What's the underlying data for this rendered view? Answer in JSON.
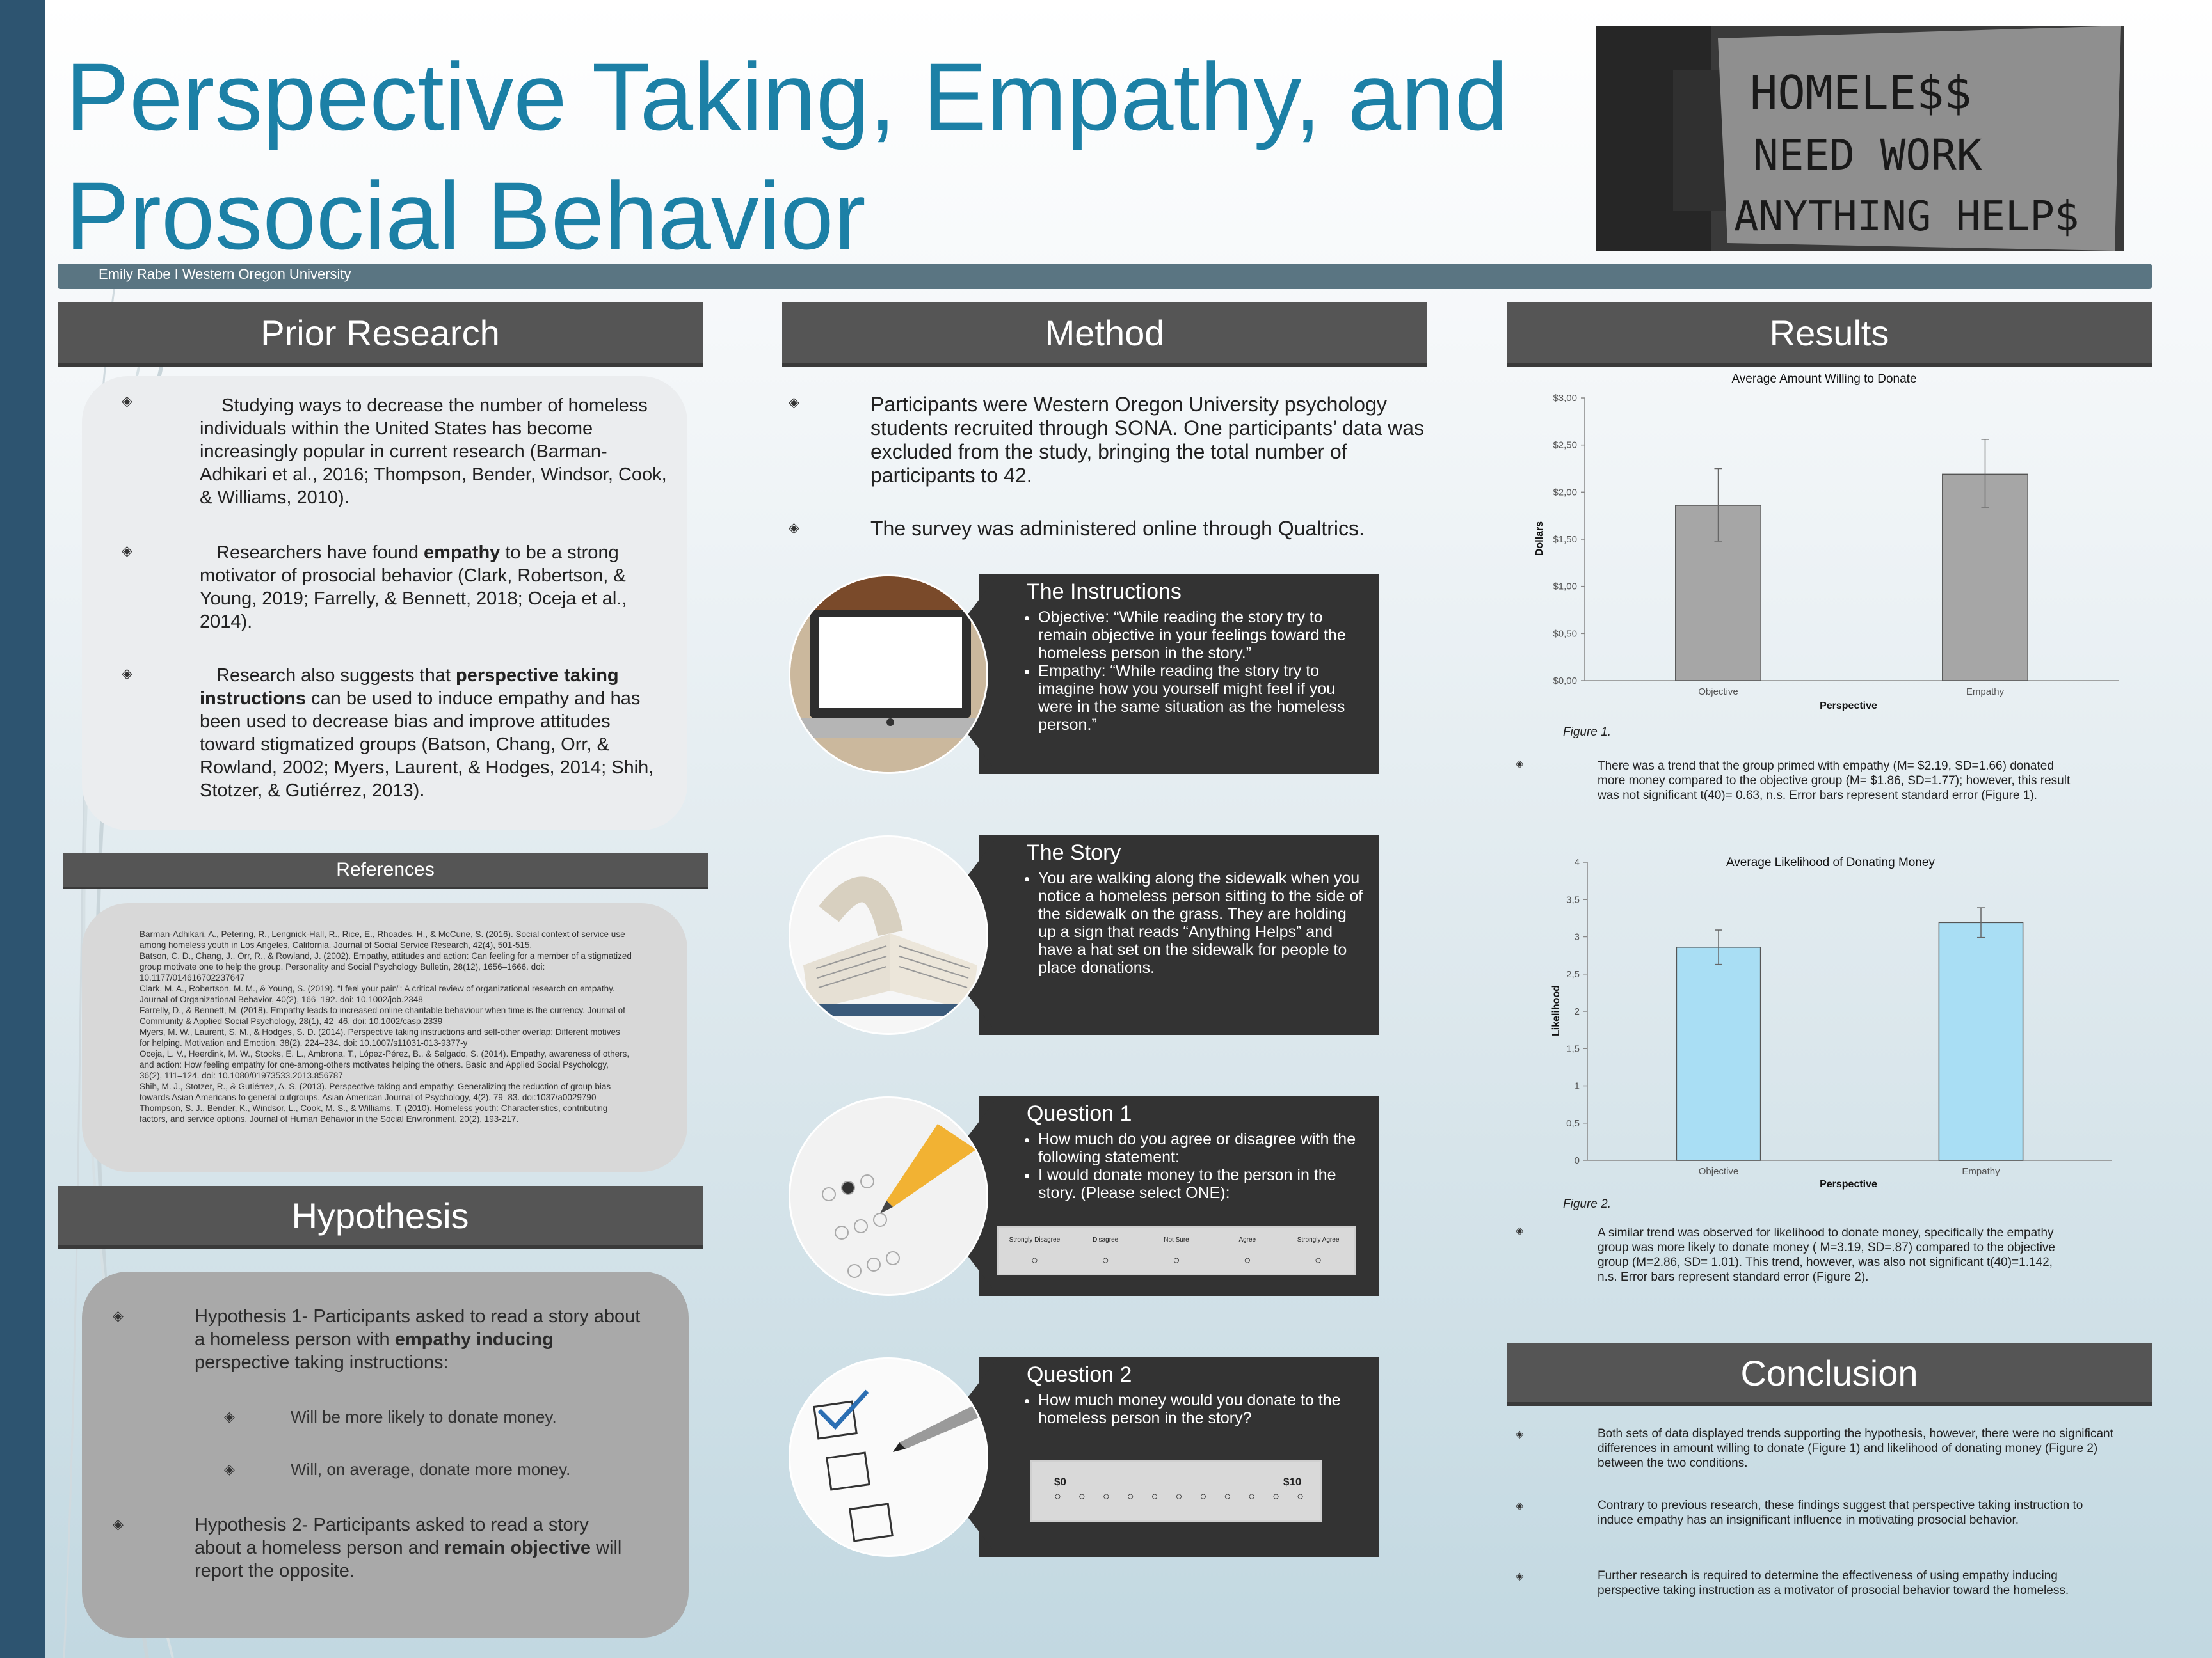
{
  "title_lines": [
    "Perspective Taking, Empathy, and",
    "Prosocial Behavior"
  ],
  "photo_sign": [
    "HOMELE$$",
    "NEED WORK",
    "ANYTHING HELP$"
  ],
  "author": "Emily Rabe I Western Oregon University",
  "prior": {
    "heading": "Prior Research",
    "p1": "Studying ways to decrease the number of homeless individuals within the United States has become increasingly popular in current research (Barman-Adhikari et al., 2016; Thompson, Bender, Windsor, Cook, & Williams, 2010).",
    "p2a": "Researchers have found ",
    "p2b": "empathy",
    "p2c": " to be a strong motivator of prosocial behavior (Clark, Robertson, & Young, 2019; Farrelly, & Bennett, 2018; Oceja et al., 2014).",
    "p3a": "Research also suggests that ",
    "p3b": "perspective taking instructions",
    "p3c": " can be used to induce empathy and has been used to decrease bias and improve attitudes toward stigmatized groups (Batson, Chang, Orr, & Rowland, 2002; Myers, Laurent, & Hodges, 2014; Shih, Stotzer, & Gutiérrez, 2013)."
  },
  "references": {
    "heading": "References",
    "items": [
      "Barman-Adhikari, A., Petering, R., Lengnick-Hall, R., Rice, E., Rhoades, H., & McCune, S. (2016). Social context of service use among homeless youth in Los Angeles, California. Journal of Social Service Research, 42(4), 501-515.",
      "Batson, C. D., Chang, J., Orr, R., & Rowland, J. (2002). Empathy, attitudes and action: Can feeling for a member of a stigmatized group motivate one to help the group. Personality and Social Psychology Bulletin, 28(12), 1656–1666. doi: 10.1177/014616702237647",
      "Clark, M. A., Robertson, M. M., & Young, S. (2019). “I feel your pain”: A critical review of organizational research on empathy. Journal of Organizational Behavior, 40(2), 166–192. doi: 10.1002/job.2348",
      "Farrelly, D., & Bennett, M. (2018). Empathy leads to increased online charitable behaviour when time is the currency. Journal of Community & Applied Social Psychology, 28(1), 42–46. doi: 10.1002/casp.2339",
      "Myers, M. W., Laurent, S. M., & Hodges, S. D. (2014). Perspective taking instructions and self-other overlap: Different motives for helping. Motivation and Emotion, 38(2), 224–234. doi: 10.1007/s11031-013-9377-y",
      "Oceja, L. V., Heerdink, M. W., Stocks, E. L., Ambrona, T., López-Pérez, B., & Salgado, S. (2014). Empathy, awareness of others, and action: How feeling empathy for one-among-others motivates helping the others. Basic and Applied Social Psychology, 36(2), 111–124. doi: 10.1080/01973533.2013.856787",
      "Shih, M. J., Stotzer, R., & Gutiérrez, A. S. (2013). Perspective-taking and empathy: Generalizing the reduction of group bias towards Asian Americans to general outgroups. Asian American Journal of Psychology, 4(2), 79–83. doi:1037/a0029790",
      "Thompson, S. J., Bender, K., Windsor, L., Cook, M. S., & Williams, T. (2010). Homeless youth: Characteristics, contributing factors, and service options. Journal of Human Behavior in the Social Environment, 20(2), 193-217."
    ]
  },
  "hypothesis": {
    "heading": "Hypothesis",
    "h1a": "Hypothesis 1- Participants asked to read a story about a homeless person with ",
    "h1b": "empathy inducing",
    "h1c": " perspective taking instructions:",
    "sub1": "Will be more likely to donate money.",
    "sub2": "Will, on average, donate more money.",
    "h2a": "Hypothesis 2- Participants asked to read a story about a homeless person and ",
    "h2b": "remain objective",
    "h2c": " will report the opposite."
  },
  "method": {
    "heading": "Method",
    "p1": "Participants were Western Oregon University psychology students recruited through SONA. One participants’ data was excluded from the study, bringing the total number of participants to 42.",
    "p2": "The survey was administered online through Qualtrics.",
    "instructions": {
      "title": "The Instructions",
      "items": [
        "Objective: “While reading the story try to remain objective in your feelings toward the homeless person in the story.”",
        "Empathy: “While reading the story try to imagine how you yourself might feel if you were in the same situation as the homeless person.”"
      ]
    },
    "story": {
      "title": "The Story",
      "items": [
        "You are walking along the sidewalk when you notice a homeless person sitting to the side of the sidewalk on the grass. They are holding up a sign that reads “Anything Helps” and have a hat set on the sidewalk for people to place donations."
      ]
    },
    "q1": {
      "title": "Question 1",
      "items": [
        "How much do you agree or disagree with the following statement:",
        "I would donate money to the person in the story. (Please select ONE):"
      ],
      "scale": [
        "Strongly Disagree",
        "Disagree",
        "Not Sure",
        "Agree",
        "Strongly Agree"
      ]
    },
    "q2": {
      "title": "Question 2",
      "items": [
        "How much money would you donate to the homeless person in the story?"
      ],
      "min": "$0",
      "max": "$10"
    }
  },
  "results": {
    "heading": "Results",
    "fig1_caption": "Figure 1.",
    "fig1_text": "There was a trend that the group primed with empathy (M= $2.19, SD=1.66) donated more money compared to the objective group (M= $1.86, SD=1.77); however, this result was not significant t(40)= 0.63, n.s. Error bars represent standard error (Figure 1).",
    "fig2_caption": "Figure 2.",
    "fig2_text": "A similar trend was observed for likelihood to donate money, specifically the empathy group was more likely to donate money ( M=3.19, SD=.87) compared to the objective group (M=2.86, SD= 1.01). This trend, however, was also not significant t(40)=1.142, n.s. Error bars represent standard error (Figure 2)."
  },
  "chart_data": [
    {
      "type": "bar",
      "title": "Average Amount Willing to Donate",
      "xlabel": "Perspective",
      "ylabel": "Dollars",
      "categories": [
        "Objective",
        "Empathy"
      ],
      "values": [
        1.86,
        2.19
      ],
      "error_low": [
        1.48,
        1.84
      ],
      "error_high": [
        2.25,
        2.56
      ],
      "ylim": [
        0,
        3
      ],
      "yticks": [
        "$0,00",
        "$0,50",
        "$1,00",
        "$1,50",
        "$2,00",
        "$2,50",
        "$3,00"
      ],
      "color": "#a6a6a6"
    },
    {
      "type": "bar",
      "title": "Average Likelihood of Donating Money",
      "xlabel": "Perspective",
      "ylabel": "Likelihood",
      "categories": [
        "Objective",
        "Empathy"
      ],
      "values": [
        2.86,
        3.19
      ],
      "error_low": [
        2.63,
        2.99
      ],
      "error_high": [
        3.09,
        3.39
      ],
      "ylim": [
        0,
        4
      ],
      "yticks": [
        "0",
        "0,5",
        "1",
        "1,5",
        "2",
        "2,5",
        "3",
        "3,5",
        "4"
      ],
      "color": "#a9def4"
    }
  ],
  "conclusion": {
    "heading": "Conclusion",
    "items": [
      "Both sets of data displayed trends supporting the hypothesis, however, there were no significant differences in amount willing to donate (Figure 1) and likelihood of donating money (Figure 2) between the two conditions.",
      "Contrary to previous research, these findings suggest that perspective taking instruction to induce empathy has an insignificant influence in motivating prosocial behavior.",
      "Further research is required to determine the effectiveness of using empathy inducing perspective taking instruction as a motivator of prosocial behavior toward the homeless."
    ]
  }
}
